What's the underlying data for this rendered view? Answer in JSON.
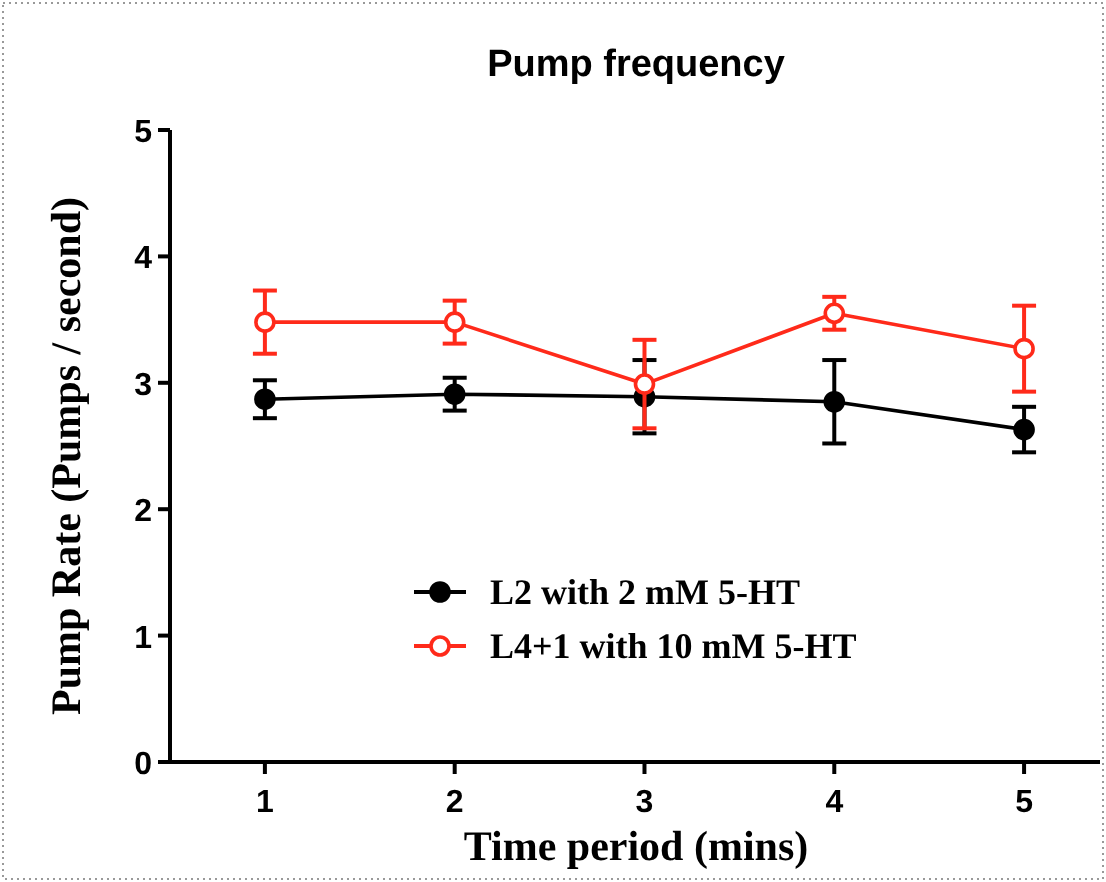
{
  "chart_data": {
    "type": "line",
    "title": "Pump frequency",
    "xlabel": "Time period (mins)",
    "ylabel": "Pump Rate (Pumps / second)",
    "x": [
      1,
      2,
      3,
      4,
      5
    ],
    "xlim": [
      0.5,
      5.4
    ],
    "xticks": [
      1,
      2,
      3,
      4,
      5
    ],
    "ylim": [
      0,
      5
    ],
    "yticks": [
      0,
      1,
      2,
      3,
      4,
      5
    ],
    "marker": "circle",
    "legend": "bottom",
    "grid": false,
    "series": [
      {
        "name": "L2 with 2 mM 5-HT",
        "color": "#000000",
        "values": [
          2.87,
          2.91,
          2.89,
          2.85,
          2.63
        ],
        "errors": [
          0.15,
          0.13,
          0.29,
          0.33,
          0.18
        ]
      },
      {
        "name": "L4+1 with 10 mM 5-HT",
        "color": "#ff2a1a",
        "values": [
          3.48,
          3.48,
          2.99,
          3.55,
          3.27
        ],
        "errors": [
          0.25,
          0.17,
          0.35,
          0.13,
          0.34
        ]
      }
    ]
  }
}
